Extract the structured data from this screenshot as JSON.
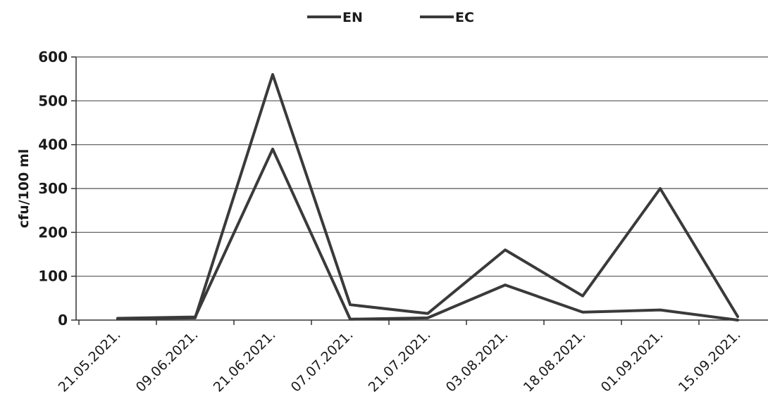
{
  "chart_data": {
    "type": "line",
    "title": "",
    "xlabel": "",
    "ylabel": "cfu/100 ml",
    "categories": [
      "21.05.2021.",
      "09.06.2021.",
      "21.06.2021.",
      "07.07.2021.",
      "21.07.2021.",
      "03.08.2021.",
      "18.08.2021.",
      "01.09.2021.",
      "15.09.2021."
    ],
    "series": [
      {
        "name": "EN",
        "values": [
          4,
          7,
          390,
          2,
          5,
          80,
          18,
          23,
          0
        ]
      },
      {
        "name": "EC",
        "values": [
          3,
          5,
          560,
          35,
          15,
          160,
          55,
          300,
          8
        ]
      }
    ],
    "ylim": [
      0,
      600
    ],
    "yticks": [
      0,
      100,
      200,
      300,
      400,
      500,
      600
    ],
    "grid": true,
    "legend_position": "top-center",
    "line_color": "#3a3a3a"
  }
}
